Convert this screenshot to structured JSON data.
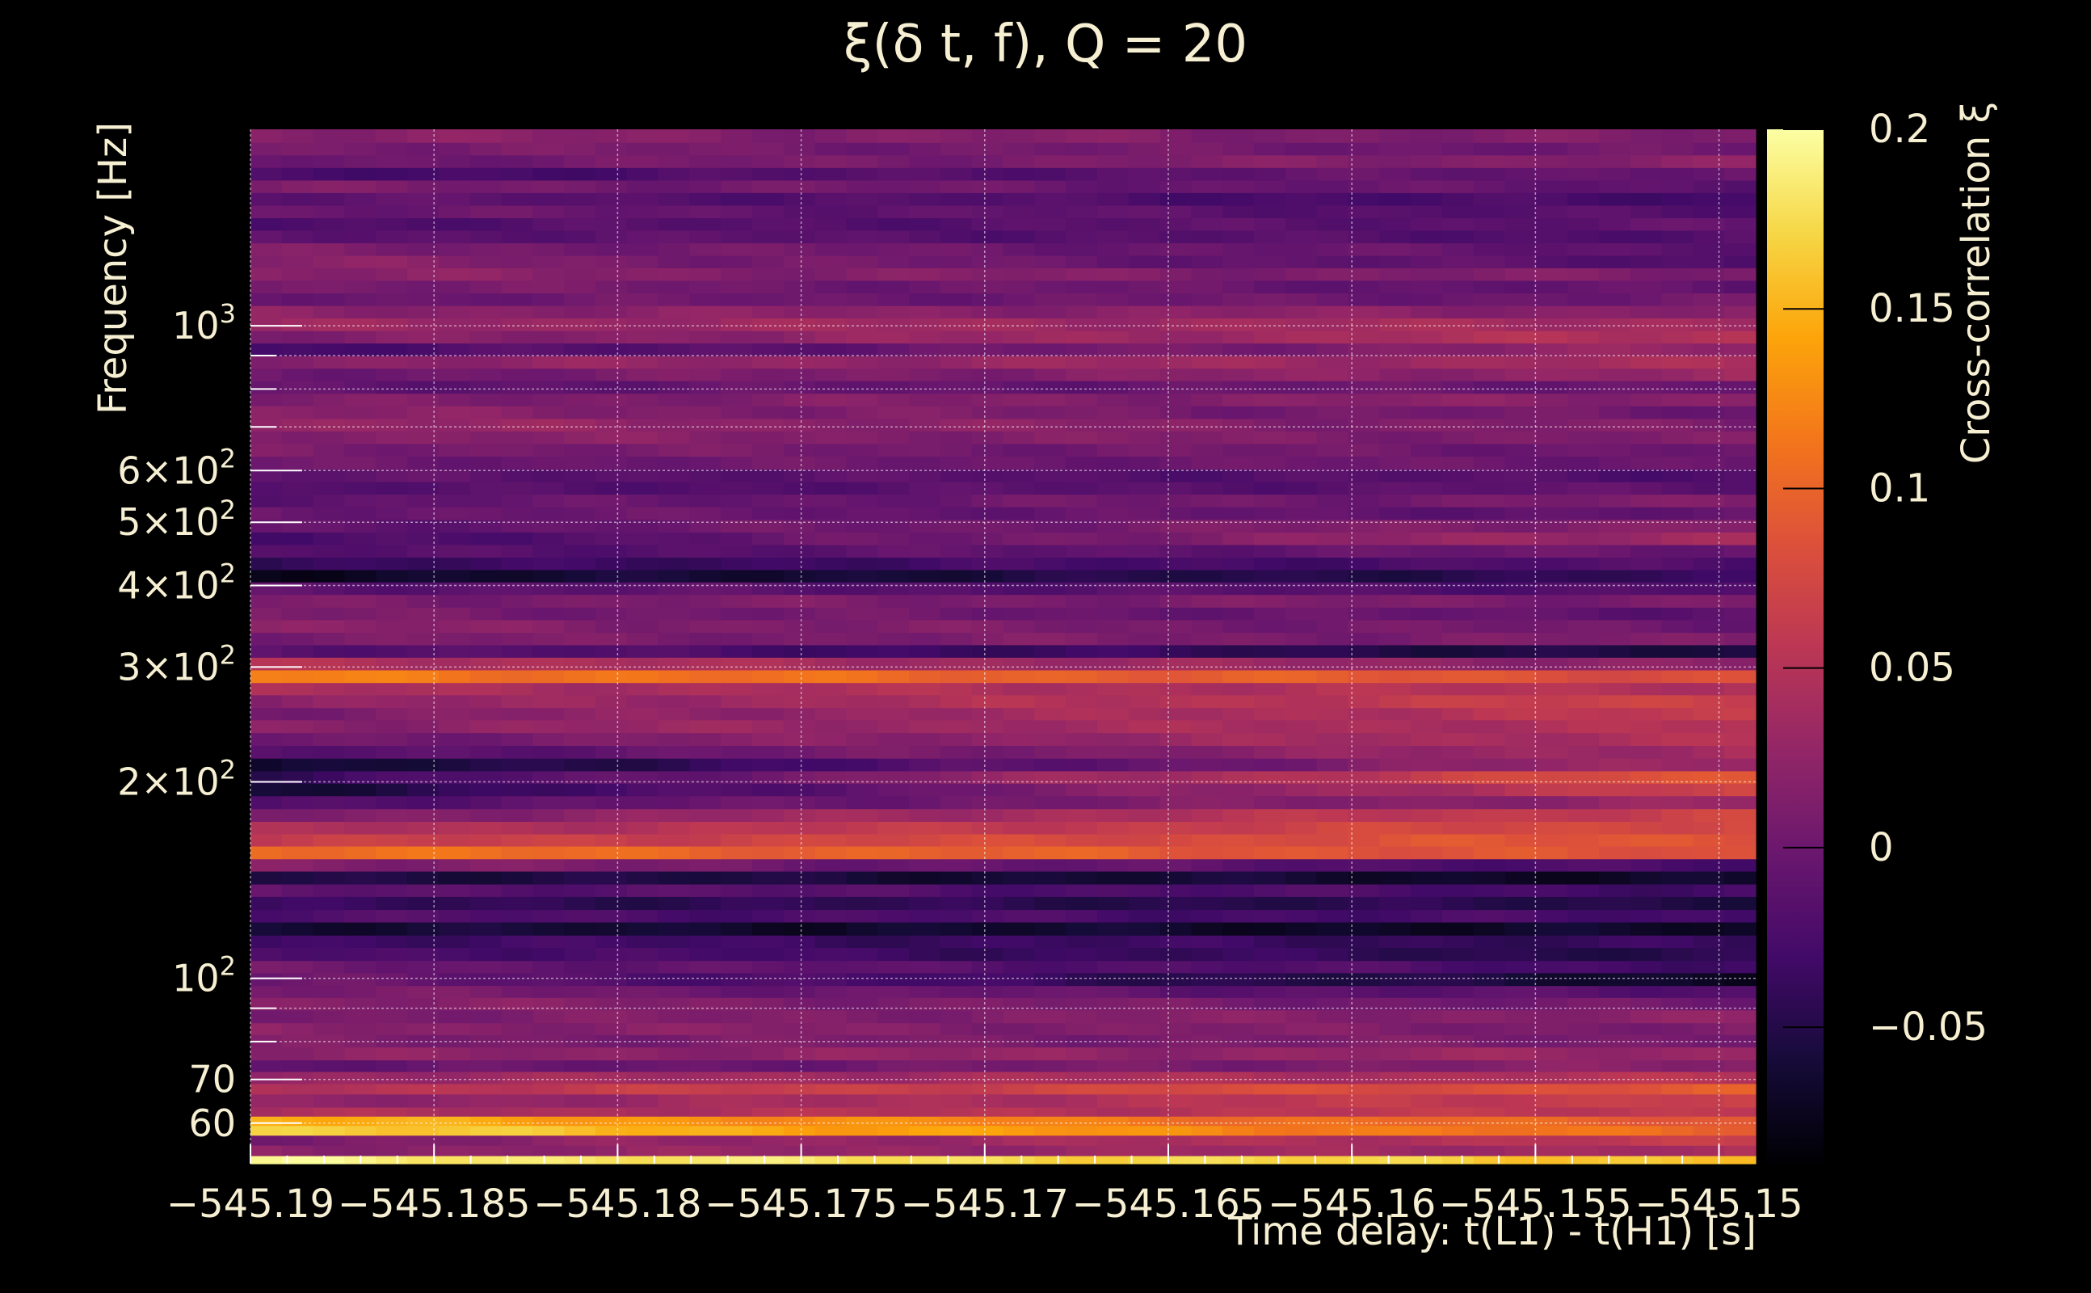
{
  "chart_data": {
    "type": "heatmap",
    "title": "ξ(δ t, f), Q = 20",
    "xlabel": "Time delay: t(L1) - t(H1) [s]",
    "ylabel": "Frequency [Hz]",
    "colorbar_label": "Cross-correlation ξ",
    "xlim": [
      -545.19,
      -545.149
    ],
    "ylim": [
      52,
      2000
    ],
    "y_scale": "log",
    "clim": [
      -0.088,
      0.2
    ],
    "colormap": "inferno",
    "grid": true,
    "x_ticks": [
      {
        "value": -545.19,
        "label": "−545.19"
      },
      {
        "value": -545.185,
        "label": "−545.185"
      },
      {
        "value": -545.18,
        "label": "−545.18"
      },
      {
        "value": -545.175,
        "label": "−545.175"
      },
      {
        "value": -545.17,
        "label": "−545.17"
      },
      {
        "value": -545.165,
        "label": "−545.165"
      },
      {
        "value": -545.16,
        "label": "−545.16"
      },
      {
        "value": -545.155,
        "label": "−545.155"
      },
      {
        "value": -545.15,
        "label": "−545.15"
      }
    ],
    "y_ticks_major": [
      {
        "value": 60,
        "mantissa": "60",
        "exponent": ""
      },
      {
        "value": 70,
        "mantissa": "70",
        "exponent": ""
      },
      {
        "value": 100,
        "mantissa": "10",
        "exponent": "2"
      },
      {
        "value": 200,
        "mantissa": "2×10",
        "exponent": "2"
      },
      {
        "value": 300,
        "mantissa": "3×10",
        "exponent": "2"
      },
      {
        "value": 400,
        "mantissa": "4×10",
        "exponent": "2"
      },
      {
        "value": 500,
        "mantissa": "5×10",
        "exponent": "2"
      },
      {
        "value": 600,
        "mantissa": "6×10",
        "exponent": "2"
      },
      {
        "value": 1000,
        "mantissa": "10",
        "exponent": "3"
      }
    ],
    "y_ticks_minor": [
      80,
      90,
      700,
      800,
      900
    ],
    "colorbar_ticks": [
      {
        "value": -0.05,
        "label": "−0.05"
      },
      {
        "value": 0,
        "label": "0"
      },
      {
        "value": 0.05,
        "label": "0.05"
      },
      {
        "value": 0.1,
        "label": "0.1"
      },
      {
        "value": 0.15,
        "label": "0.15"
      },
      {
        "value": 0.2,
        "label": "0.2"
      }
    ],
    "x_bins": 48,
    "rows": [
      {
        "f_low": 52.0,
        "f_high": 53.5,
        "v0": 0.19,
        "v1": 0.16
      },
      {
        "f_low": 53.5,
        "f_high": 55.5,
        "v0": 0.02,
        "v1": 0.04
      },
      {
        "f_low": 55.5,
        "f_high": 57.5,
        "v0": 0.01,
        "v1": 0.06
      },
      {
        "f_low": 57.5,
        "f_high": 59.5,
        "v0": 0.17,
        "v1": 0.1
      },
      {
        "f_low": 59.5,
        "f_high": 61.5,
        "v0": 0.15,
        "v1": 0.09
      },
      {
        "f_low": 61.5,
        "f_high": 63.5,
        "v0": 0.04,
        "v1": 0.06
      },
      {
        "f_low": 63.5,
        "f_high": 66.5,
        "v0": 0.02,
        "v1": 0.07
      },
      {
        "f_low": 66.5,
        "f_high": 69.0,
        "v0": 0.05,
        "v1": 0.09
      },
      {
        "f_low": 69.0,
        "f_high": 72.0,
        "v0": 0.03,
        "v1": 0.05
      },
      {
        "f_low": 72.0,
        "f_high": 75.0,
        "v0": -0.01,
        "v1": 0.02
      },
      {
        "f_low": 75.0,
        "f_high": 78.5,
        "v0": 0.02,
        "v1": 0.03
      },
      {
        "f_low": 78.5,
        "f_high": 82.0,
        "v0": 0.01,
        "v1": 0.01
      },
      {
        "f_low": 82.0,
        "f_high": 85.5,
        "v0": 0.02,
        "v1": 0.01
      },
      {
        "f_low": 85.5,
        "f_high": 89.5,
        "v0": 0.01,
        "v1": 0.02
      },
      {
        "f_low": 89.5,
        "f_high": 93.5,
        "v0": 0.02,
        "v1": 0.0
      },
      {
        "f_low": 93.5,
        "f_high": 97.5,
        "v0": 0.01,
        "v1": -0.02
      },
      {
        "f_low": 97.5,
        "f_high": 102.0,
        "v0": 0.0,
        "v1": -0.07
      },
      {
        "f_low": 102.0,
        "f_high": 106.5,
        "v0": 0.0,
        "v1": -0.03
      },
      {
        "f_low": 106.5,
        "f_high": 111.5,
        "v0": -0.02,
        "v1": -0.05
      },
      {
        "f_low": 111.5,
        "f_high": 116.5,
        "v0": -0.03,
        "v1": -0.04
      },
      {
        "f_low": 116.5,
        "f_high": 122.0,
        "v0": -0.06,
        "v1": -0.07
      },
      {
        "f_low": 122.0,
        "f_high": 127.5,
        "v0": -0.02,
        "v1": -0.03
      },
      {
        "f_low": 127.5,
        "f_high": 133.5,
        "v0": -0.04,
        "v1": -0.05
      },
      {
        "f_low": 133.5,
        "f_high": 139.5,
        "v0": -0.01,
        "v1": -0.03
      },
      {
        "f_low": 139.5,
        "f_high": 146.0,
        "v0": -0.05,
        "v1": -0.07
      },
      {
        "f_low": 146.0,
        "f_high": 152.5,
        "v0": 0.02,
        "v1": -0.03
      },
      {
        "f_low": 152.5,
        "f_high": 159.5,
        "v0": 0.11,
        "v1": 0.08
      },
      {
        "f_low": 159.5,
        "f_high": 166.5,
        "v0": 0.06,
        "v1": 0.09
      },
      {
        "f_low": 166.5,
        "f_high": 174.0,
        "v0": 0.04,
        "v1": 0.08
      },
      {
        "f_low": 174.0,
        "f_high": 182.0,
        "v0": 0.01,
        "v1": 0.07
      },
      {
        "f_low": 182.0,
        "f_high": 190.5,
        "v0": -0.02,
        "v1": 0.03
      },
      {
        "f_low": 190.5,
        "f_high": 199.0,
        "v0": -0.06,
        "v1": 0.07
      },
      {
        "f_low": 199.0,
        "f_high": 208.0,
        "v0": -0.04,
        "v1": 0.09
      },
      {
        "f_low": 208.0,
        "f_high": 217.5,
        "v0": -0.07,
        "v1": 0.04
      },
      {
        "f_low": 217.5,
        "f_high": 227.5,
        "v0": -0.02,
        "v1": 0.04
      },
      {
        "f_low": 227.5,
        "f_high": 238.0,
        "v0": 0.0,
        "v1": 0.05
      },
      {
        "f_low": 238.0,
        "f_high": 249.0,
        "v0": 0.02,
        "v1": 0.05
      },
      {
        "f_low": 249.0,
        "f_high": 260.0,
        "v0": 0.01,
        "v1": 0.06
      },
      {
        "f_low": 260.0,
        "f_high": 272.0,
        "v0": 0.02,
        "v1": 0.07
      },
      {
        "f_low": 272.0,
        "f_high": 284.0,
        "v0": 0.04,
        "v1": 0.05
      },
      {
        "f_low": 284.0,
        "f_high": 297.0,
        "v0": 0.12,
        "v1": 0.08
      },
      {
        "f_low": 297.0,
        "f_high": 310.5,
        "v0": 0.05,
        "v1": 0.02
      },
      {
        "f_low": 310.5,
        "f_high": 324.5,
        "v0": -0.01,
        "v1": -0.06
      },
      {
        "f_low": 324.5,
        "f_high": 339.0,
        "v0": 0.01,
        "v1": 0.01
      },
      {
        "f_low": 339.0,
        "f_high": 354.5,
        "v0": 0.02,
        "v1": 0.0
      },
      {
        "f_low": 354.5,
        "f_high": 370.5,
        "v0": 0.01,
        "v1": -0.01
      },
      {
        "f_low": 370.5,
        "f_high": 387.5,
        "v0": 0.01,
        "v1": 0.01
      },
      {
        "f_low": 387.5,
        "f_high": 405.0,
        "v0": -0.01,
        "v1": -0.02
      },
      {
        "f_low": 405.0,
        "f_high": 423.0,
        "v0": -0.07,
        "v1": -0.04
      },
      {
        "f_low": 423.0,
        "f_high": 442.0,
        "v0": -0.04,
        "v1": -0.02
      },
      {
        "f_low": 442.0,
        "f_high": 462.0,
        "v0": -0.02,
        "v1": 0.0
      },
      {
        "f_low": 462.0,
        "f_high": 483.0,
        "v0": -0.03,
        "v1": 0.04
      },
      {
        "f_low": 483.0,
        "f_high": 505.0,
        "v0": -0.01,
        "v1": 0.02
      },
      {
        "f_low": 505.0,
        "f_high": 528.0,
        "v0": 0.0,
        "v1": -0.01
      },
      {
        "f_low": 528.0,
        "f_high": 552.0,
        "v0": -0.01,
        "v1": 0.01
      },
      {
        "f_low": 552.0,
        "f_high": 577.0,
        "v0": -0.02,
        "v1": -0.01
      },
      {
        "f_low": 577.0,
        "f_high": 603.0,
        "v0": -0.01,
        "v1": -0.02
      },
      {
        "f_low": 603.0,
        "f_high": 631.0,
        "v0": 0.0,
        "v1": 0.0
      },
      {
        "f_low": 631.0,
        "f_high": 660.0,
        "v0": 0.01,
        "v1": 0.0
      },
      {
        "f_low": 660.0,
        "f_high": 690.0,
        "v0": 0.02,
        "v1": 0.01
      },
      {
        "f_low": 690.0,
        "f_high": 721.0,
        "v0": 0.03,
        "v1": 0.01
      },
      {
        "f_low": 721.0,
        "f_high": 754.0,
        "v0": 0.02,
        "v1": 0.0
      },
      {
        "f_low": 754.0,
        "f_high": 788.0,
        "v0": 0.01,
        "v1": 0.02
      },
      {
        "f_low": 788.0,
        "f_high": 824.0,
        "v0": -0.01,
        "v1": 0.0
      },
      {
        "f_low": 824.0,
        "f_high": 861.0,
        "v0": 0.0,
        "v1": 0.03
      },
      {
        "f_low": 861.0,
        "f_high": 900.0,
        "v0": 0.02,
        "v1": 0.04
      },
      {
        "f_low": 900.0,
        "f_high": 941.0,
        "v0": -0.03,
        "v1": 0.03
      },
      {
        "f_low": 941.0,
        "f_high": 983.0,
        "v0": 0.01,
        "v1": 0.05
      },
      {
        "f_low": 983.0,
        "f_high": 1028.0,
        "v0": 0.03,
        "v1": 0.04
      },
      {
        "f_low": 1028.0,
        "f_high": 1074.0,
        "v0": 0.02,
        "v1": 0.02
      },
      {
        "f_low": 1074.0,
        "f_high": 1123.0,
        "v0": 0.0,
        "v1": 0.0
      },
      {
        "f_low": 1123.0,
        "f_high": 1174.0,
        "v0": 0.01,
        "v1": -0.01
      },
      {
        "f_low": 1174.0,
        "f_high": 1227.0,
        "v0": 0.02,
        "v1": 0.01
      },
      {
        "f_low": 1227.0,
        "f_high": 1282.0,
        "v0": 0.02,
        "v1": -0.02
      },
      {
        "f_low": 1282.0,
        "f_high": 1340.0,
        "v0": 0.01,
        "v1": -0.01
      },
      {
        "f_low": 1340.0,
        "f_high": 1401.0,
        "v0": -0.01,
        "v1": -0.02
      },
      {
        "f_low": 1401.0,
        "f_high": 1464.0,
        "v0": -0.02,
        "v1": -0.01
      },
      {
        "f_low": 1464.0,
        "f_high": 1530.0,
        "v0": 0.0,
        "v1": -0.02
      },
      {
        "f_low": 1530.0,
        "f_high": 1600.0,
        "v0": -0.01,
        "v1": -0.03
      },
      {
        "f_low": 1600.0,
        "f_high": 1672.0,
        "v0": 0.01,
        "v1": -0.01
      },
      {
        "f_low": 1672.0,
        "f_high": 1748.0,
        "v0": -0.03,
        "v1": 0.0
      },
      {
        "f_low": 1748.0,
        "f_high": 1827.0,
        "v0": 0.0,
        "v1": 0.02
      },
      {
        "f_low": 1827.0,
        "f_high": 1910.0,
        "v0": 0.01,
        "v1": 0.0
      },
      {
        "f_low": 1910.0,
        "f_high": 2000.0,
        "v0": 0.02,
        "v1": 0.01
      }
    ]
  }
}
